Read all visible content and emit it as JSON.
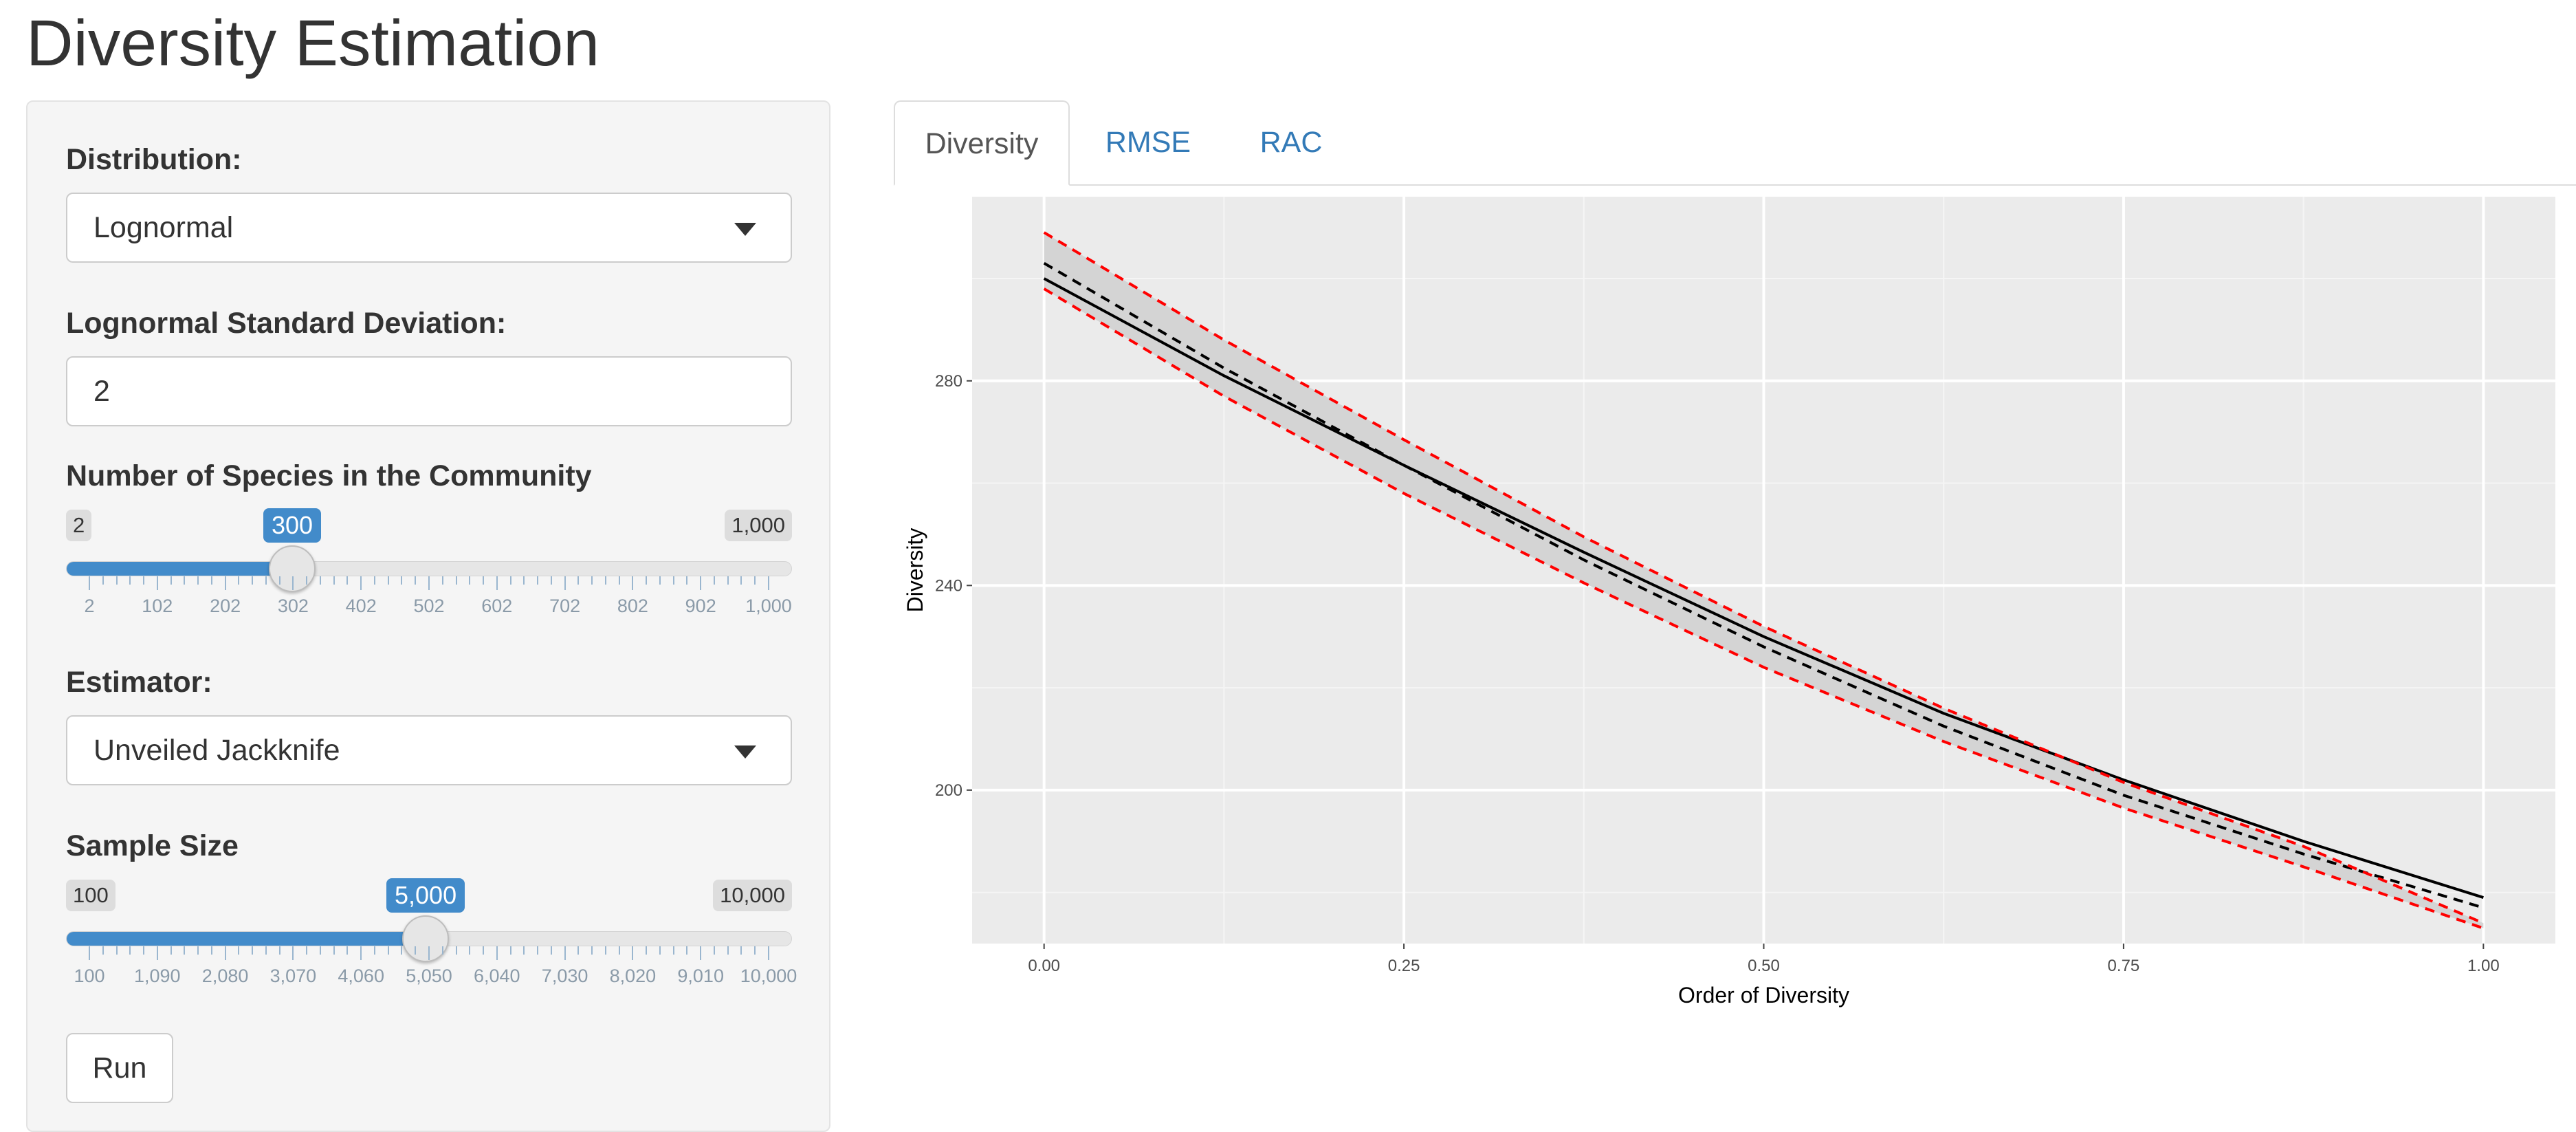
{
  "title": "Diversity Estimation",
  "sidebar": {
    "distribution": {
      "label": "Distribution:",
      "value": "Lognormal"
    },
    "sd": {
      "label": "Lognormal Standard Deviation:",
      "value": "2"
    },
    "species": {
      "label": "Number of Species in the Community",
      "min_label": "2",
      "max_label": "1,000",
      "value_label": "300",
      "min": 2,
      "max": 1000,
      "value": 300,
      "ticks": [
        "2",
        "102",
        "202",
        "302",
        "402",
        "502",
        "602",
        "702",
        "802",
        "902",
        "1,000"
      ]
    },
    "estimator": {
      "label": "Estimator:",
      "value": "Unveiled Jackknife"
    },
    "sample": {
      "label": "Sample Size",
      "min_label": "100",
      "max_label": "10,000",
      "value_label": "5,000",
      "min": 100,
      "max": 10000,
      "value": 5000,
      "ticks": [
        "100",
        "1,090",
        "2,080",
        "3,070",
        "4,060",
        "5,050",
        "6,040",
        "7,030",
        "8,020",
        "9,010",
        "10,000"
      ]
    },
    "run_label": "Run"
  },
  "tabs": [
    {
      "label": "Diversity",
      "active": true
    },
    {
      "label": "RMSE",
      "active": false
    },
    {
      "label": "RAC",
      "active": false
    }
  ],
  "chart_data": {
    "type": "line",
    "xlabel": "Order of Diversity",
    "ylabel": "Diversity",
    "xlim": [
      -0.05,
      1.05
    ],
    "ylim": [
      170,
      316
    ],
    "xticks": [
      0,
      0.25,
      0.5,
      0.75,
      1
    ],
    "xtick_labels": [
      "0.00",
      "0.25",
      "0.50",
      "0.75",
      "1.00"
    ],
    "yticks": [
      200,
      240,
      280
    ],
    "ytick_labels": [
      "200",
      "240",
      "280"
    ],
    "grid": true,
    "x": [
      0,
      0.125,
      0.25,
      0.375,
      0.5,
      0.625,
      0.75,
      0.875,
      1
    ],
    "series": [
      {
        "values": [
          300,
          281,
          263.5,
          246.5,
          230,
          215,
          202,
          190,
          179
        ],
        "style": "solid",
        "color": "#000000"
      },
      {
        "values": [
          303,
          282.5,
          263.5,
          245,
          228,
          212.5,
          199,
          187.5,
          177
        ],
        "style": "dashed",
        "color": "#000000"
      },
      {
        "values": [
          309,
          288,
          268.5,
          249.5,
          232,
          216,
          201.5,
          189,
          174
        ],
        "style": "dashed",
        "color": "#ff0000"
      },
      {
        "values": [
          298,
          277,
          258,
          240.5,
          224,
          209.5,
          196.5,
          185,
          173
        ],
        "style": "dashed",
        "color": "#ff0000"
      }
    ],
    "band_color": "#d4d4d4"
  }
}
